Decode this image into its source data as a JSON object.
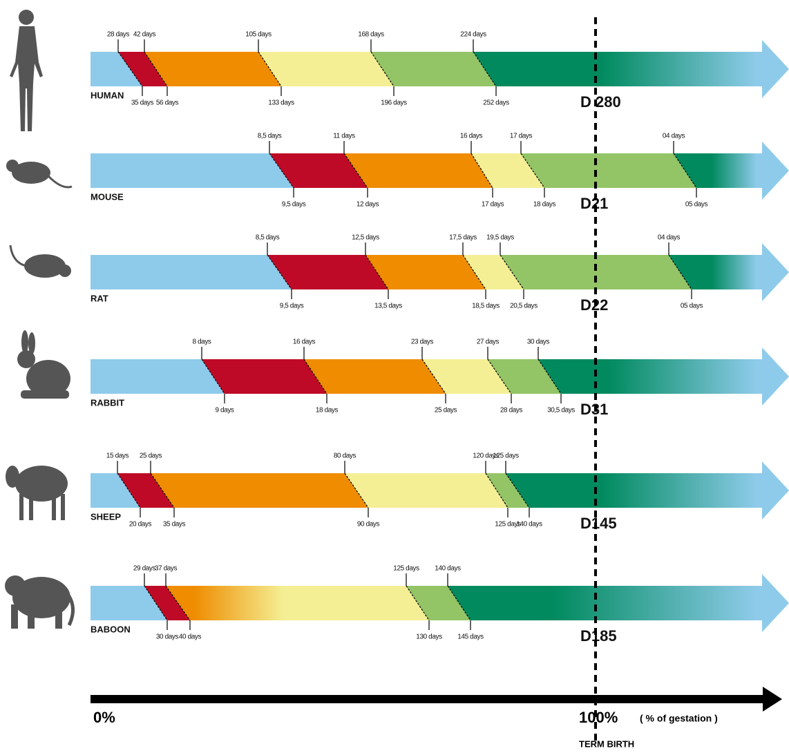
{
  "rows": [
    {
      "name": "HUMAN",
      "term": "D 280",
      "transitions": [
        {
          "top": "28 days",
          "bottom": "35 days"
        },
        {
          "top": "42 days",
          "bottom": "56 days"
        },
        {
          "top": "105 days",
          "bottom": "133 days"
        },
        {
          "top": "168 days",
          "bottom": "196 days"
        },
        {
          "top": "224 days",
          "bottom": "252 days"
        }
      ]
    },
    {
      "name": "MOUSE",
      "term": "D21",
      "transitions": [
        {
          "top": "8,5 days",
          "bottom": "9,5 days"
        },
        {
          "top": "11 days",
          "bottom": "12 days"
        },
        {
          "top": "16 days",
          "bottom": "17 days"
        },
        {
          "top": "17 days",
          "bottom": "18 days"
        },
        {
          "top": "04  days",
          "bottom": "05 days"
        }
      ]
    },
    {
      "name": "RAT",
      "term": "D22",
      "transitions": [
        {
          "top": "8,5 days",
          "bottom": "9,5 days"
        },
        {
          "top": "12,5 days",
          "bottom": "13,5 days"
        },
        {
          "top": "17,5 days",
          "bottom": "18,5 days"
        },
        {
          "top": "19,5 days",
          "bottom": "20,5 days"
        },
        {
          "top": "04 days",
          "bottom": "05 days"
        }
      ]
    },
    {
      "name": "RABBIT",
      "term": "D31",
      "transitions": [
        {
          "top": "8 days",
          "bottom": "9 days"
        },
        {
          "top": "16 days",
          "bottom": "18 days"
        },
        {
          "top": "23 days",
          "bottom": "25 days"
        },
        {
          "top": "27 days",
          "bottom": "28 days"
        },
        {
          "top": "30 days",
          "bottom": "30,5 days"
        }
      ]
    },
    {
      "name": "SHEEP",
      "term": "D145",
      "transitions": [
        {
          "top": "15 days",
          "bottom": "20 days"
        },
        {
          "top": "25 days",
          "bottom": "35 days"
        },
        {
          "top": "80 days",
          "bottom": "90 days"
        },
        {
          "top": "120 days",
          "bottom": "125 days"
        },
        {
          "top": "125 days",
          "bottom": "140 days"
        }
      ]
    },
    {
      "name": "BABOON",
      "term": "D185",
      "transitions": [
        {
          "top": "29 days",
          "bottom": "30 days"
        },
        {
          "top": "37 days",
          "bottom": "40 days"
        },
        {
          "top": "125 days",
          "bottom": "130 days"
        },
        {
          "top": "140 days",
          "bottom": "145 days"
        }
      ]
    }
  ],
  "axis": {
    "start": "0%",
    "end": "100%",
    "unit": "( % of gestation )",
    "end_caption": "TERM  BIRTH"
  }
}
